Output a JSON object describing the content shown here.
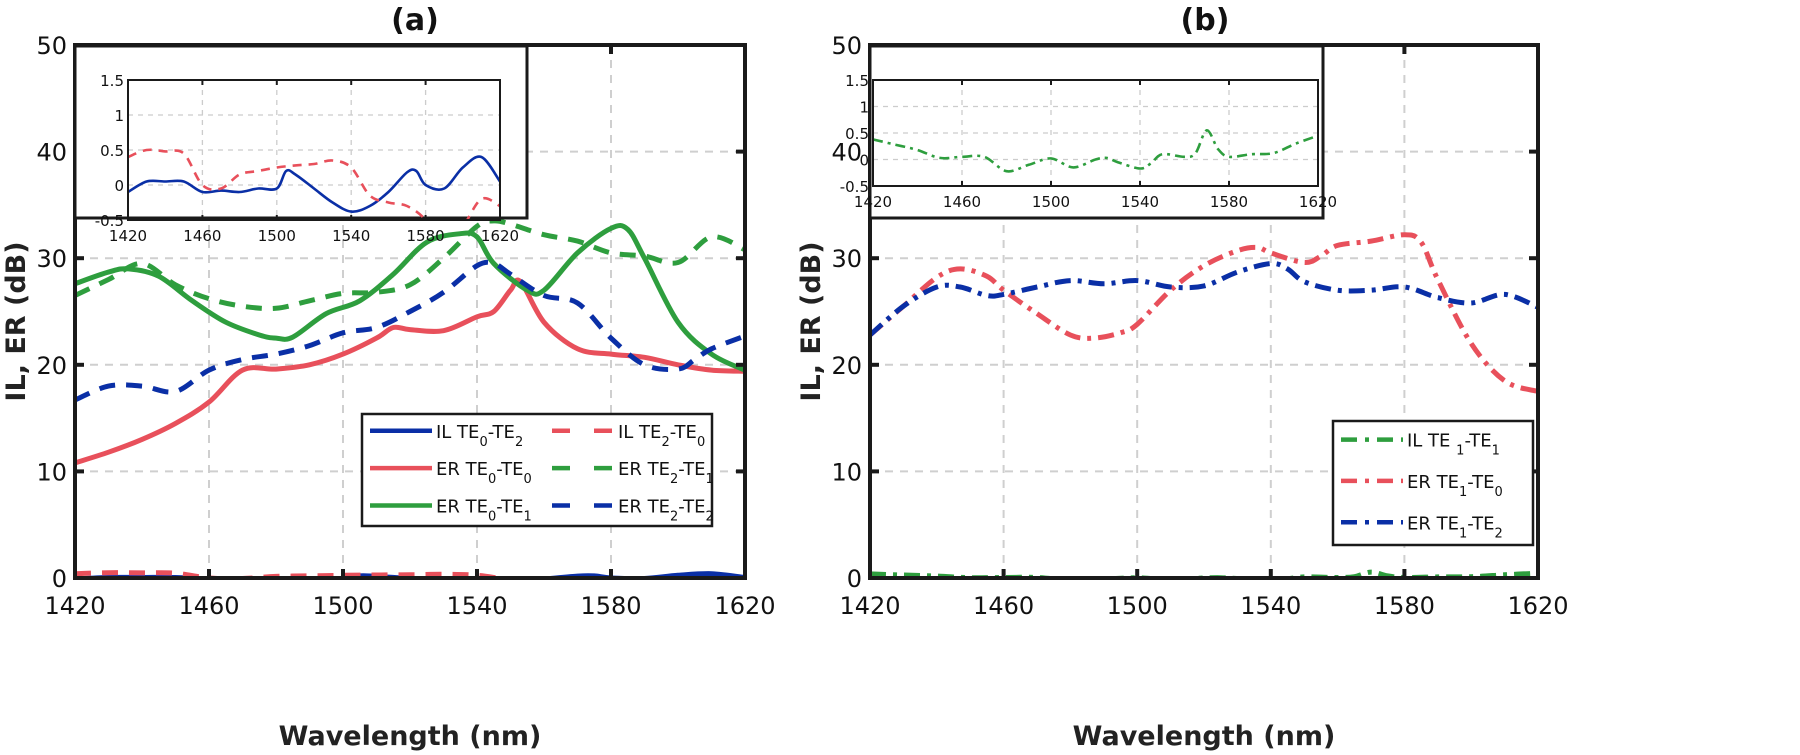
{
  "chart_data": [
    {
      "panel": "a",
      "type": "line",
      "title": "(a)",
      "xlabel": "Wavelength (nm)",
      "ylabel": "IL, ER (dB)",
      "xlim": [
        1420,
        1620
      ],
      "ylim": [
        0,
        50
      ],
      "xticks": [
        "1420",
        "1460",
        "1500",
        "1540",
        "1580",
        "1620"
      ],
      "yticks": [
        "0",
        "10",
        "20",
        "30",
        "40",
        "50"
      ],
      "grid": true,
      "legend": {
        "placement": "lower-right",
        "columns": 2
      },
      "series": [
        {
          "name": "IL TE0-TE2",
          "label_main": "IL TE",
          "sub1": "0",
          "mid": "-TE",
          "sub2": "2",
          "color": "#0a2fa6",
          "style": "solid",
          "x": [
            1420,
            1430,
            1440,
            1450,
            1460,
            1470,
            1480,
            1490,
            1500,
            1505,
            1510,
            1520,
            1530,
            1540,
            1550,
            1560,
            1570,
            1575,
            1580,
            1590,
            1600,
            1610,
            1620
          ],
          "y": [
            -0.1,
            0.05,
            0.05,
            0.05,
            -0.1,
            -0.08,
            -0.1,
            -0.05,
            -0.05,
            0.2,
            0.15,
            -0.05,
            -0.25,
            -0.38,
            -0.3,
            -0.1,
            0.18,
            0.2,
            0.0,
            -0.05,
            0.25,
            0.4,
            0.05
          ]
        },
        {
          "name": "IL TE2-TE0",
          "label_main": "IL TE",
          "sub1": "2",
          "mid": "-TE",
          "sub2": "0",
          "color": "#e8505b",
          "style": "dash",
          "x": [
            1420,
            1430,
            1440,
            1450,
            1460,
            1470,
            1480,
            1490,
            1500,
            1510,
            1520,
            1530,
            1540,
            1550,
            1560,
            1570,
            1580,
            1590,
            1600,
            1610,
            1620
          ],
          "y": [
            0.4,
            0.5,
            0.48,
            0.45,
            0.0,
            -0.05,
            0.15,
            0.2,
            0.25,
            0.28,
            0.3,
            0.35,
            0.25,
            -0.15,
            -0.25,
            -0.3,
            -0.5,
            -0.9,
            -0.6,
            -0.2,
            -0.3
          ]
        },
        {
          "name": "ER TE0-TE0",
          "label_main": "ER TE",
          "sub1": "0",
          "mid": "-TE",
          "sub2": "0",
          "color": "#e8505b",
          "style": "solid",
          "x": [
            1420,
            1430,
            1440,
            1450,
            1460,
            1470,
            1480,
            1490,
            1500,
            1510,
            1515,
            1520,
            1530,
            1540,
            1545,
            1550,
            1553,
            1560,
            1570,
            1580,
            1590,
            1600,
            1610,
            1620
          ],
          "y": [
            10.8,
            11.8,
            13,
            14.5,
            16.5,
            19.5,
            19.6,
            20,
            21,
            22.5,
            23.5,
            23.3,
            23.2,
            24.5,
            25,
            27,
            27.8,
            24,
            21.5,
            21,
            20.7,
            20,
            19.5,
            19.4
          ]
        },
        {
          "name": "ER TE2-TE1",
          "label_main": "ER TE",
          "sub1": "2",
          "mid": "-TE",
          "sub2": "1",
          "color": "#2e9e3e",
          "style": "dash",
          "x": [
            1420,
            1430,
            1440,
            1450,
            1460,
            1470,
            1480,
            1490,
            1500,
            1510,
            1520,
            1530,
            1540,
            1545,
            1550,
            1560,
            1570,
            1580,
            1590,
            1600,
            1610,
            1620
          ],
          "y": [
            26.5,
            28,
            29.5,
            27.5,
            26.2,
            25.5,
            25.3,
            26,
            26.7,
            26.8,
            27.5,
            30,
            33,
            33.5,
            33.2,
            32.2,
            31.6,
            30.5,
            30.2,
            29.6,
            32,
            30.8
          ]
        },
        {
          "name": "ER TE0-TE1",
          "label_main": "ER TE",
          "sub1": "0",
          "mid": "-TE",
          "sub2": "1",
          "color": "#2e9e3e",
          "style": "solid",
          "x": [
            1420,
            1430,
            1436,
            1445,
            1455,
            1465,
            1475,
            1480,
            1485,
            1495,
            1505,
            1515,
            1525,
            1535,
            1540,
            1545,
            1555,
            1560,
            1570,
            1580,
            1585,
            1590,
            1600,
            1610,
            1620
          ],
          "y": [
            27.6,
            28.7,
            29,
            28.3,
            26.0,
            24,
            22.8,
            22.5,
            22.6,
            24.8,
            26,
            28.5,
            31.5,
            32.3,
            32.0,
            29.5,
            27.0,
            27.0,
            30.5,
            32.8,
            32.7,
            30,
            24,
            21,
            19.5
          ]
        },
        {
          "name": "ER TE2-TE2",
          "label_main": "ER TE",
          "sub1": "2",
          "mid": "-TE",
          "sub2": "2",
          "color": "#0a2fa6",
          "style": "dash",
          "x": [
            1420,
            1430,
            1440,
            1450,
            1460,
            1470,
            1480,
            1490,
            1500,
            1510,
            1520,
            1530,
            1540,
            1545,
            1550,
            1560,
            1570,
            1580,
            1590,
            1600,
            1605,
            1610,
            1620
          ],
          "y": [
            16.7,
            18,
            18,
            17.5,
            19.5,
            20.5,
            21.0,
            21.8,
            23,
            23.5,
            25,
            26.8,
            29.3,
            29.5,
            28.5,
            26.5,
            25.8,
            22.5,
            20,
            19.6,
            20.5,
            21.5,
            22.7
          ]
        }
      ],
      "inset": {
        "xlim": [
          1420,
          1620
        ],
        "ylim": [
          -0.5,
          1.5
        ],
        "xticks": [
          "1420",
          "1460",
          "1500",
          "1540",
          "1580",
          "1620"
        ],
        "yticks": [
          "-0.5",
          "0",
          "0.5",
          "1",
          "1.5"
        ],
        "series_ref": [
          "IL TE0-TE2",
          "IL TE2-TE0"
        ]
      }
    },
    {
      "panel": "b",
      "type": "line",
      "title": "(b)",
      "xlabel": "Wavelength (nm)",
      "ylabel": "IL, ER (dB)",
      "xlim": [
        1420,
        1620
      ],
      "ylim": [
        0,
        50
      ],
      "xticks": [
        "1420",
        "1460",
        "1500",
        "1540",
        "1580",
        "1620"
      ],
      "yticks": [
        "0",
        "10",
        "20",
        "30",
        "40",
        "50"
      ],
      "grid": true,
      "legend": {
        "placement": "lower-right",
        "columns": 1
      },
      "series": [
        {
          "name": "IL TE1-TE1",
          "label_main": "IL TE ",
          "sub1": "1",
          "mid": "-TE",
          "sub2": "1",
          "color": "#2e9e3e",
          "style": "dashdot",
          "x": [
            1420,
            1430,
            1440,
            1450,
            1460,
            1470,
            1480,
            1490,
            1500,
            1510,
            1520,
            1525,
            1530,
            1540,
            1545,
            1550,
            1560,
            1565,
            1570,
            1575,
            1580,
            1590,
            1600,
            1610,
            1620
          ],
          "y": [
            0.38,
            0.28,
            0.18,
            0.03,
            0.05,
            0.05,
            -0.22,
            -0.1,
            0.02,
            -0.15,
            0.0,
            0.03,
            -0.05,
            -0.17,
            -0.07,
            0.1,
            0.05,
            0.12,
            0.55,
            0.2,
            0.05,
            0.1,
            0.12,
            0.3,
            0.45
          ]
        },
        {
          "name": "ER TE1-TE0",
          "label_main": "ER TE",
          "sub1": "1",
          "mid": "-TE",
          "sub2": "0",
          "color": "#e8505b",
          "style": "dashdot",
          "x": [
            1420,
            1430,
            1440,
            1447,
            1455,
            1460,
            1470,
            1480,
            1487,
            1495,
            1500,
            1510,
            1520,
            1530,
            1536,
            1540,
            1550,
            1555,
            1560,
            1570,
            1580,
            1585,
            1590,
            1600,
            1610,
            1620
          ],
          "y": [
            22.8,
            25.5,
            28.2,
            29.0,
            28.3,
            27.0,
            24.8,
            22.8,
            22.5,
            23.0,
            23.8,
            27,
            29.3,
            30.7,
            31.0,
            30.5,
            29.6,
            30.2,
            31.2,
            31.6,
            32.2,
            31.5,
            28,
            22,
            18.5,
            17.5
          ]
        },
        {
          "name": "ER TE1-TE2",
          "label_main": "ER TE",
          "sub1": "1",
          "mid": "-TE",
          "sub2": "2",
          "color": "#0a2fa6",
          "style": "dashdot",
          "x": [
            1420,
            1430,
            1440,
            1447,
            1455,
            1460,
            1470,
            1480,
            1490,
            1500,
            1510,
            1520,
            1530,
            1540,
            1545,
            1550,
            1560,
            1570,
            1580,
            1590,
            1600,
            1610,
            1620
          ],
          "y": [
            22.8,
            25.5,
            27.3,
            27.3,
            26.5,
            26.6,
            27.3,
            27.9,
            27.6,
            27.9,
            27.3,
            27.4,
            28.7,
            29.5,
            29.0,
            27.8,
            27.0,
            27.0,
            27.3,
            26.3,
            25.8,
            26.6,
            25.4
          ]
        }
      ],
      "inset": {
        "xlim": [
          1420,
          1620
        ],
        "ylim": [
          -0.5,
          1.5
        ],
        "xticks": [
          "1420",
          "1460",
          "1500",
          "1540",
          "1580",
          "1620"
        ],
        "yticks": [
          "-0.5",
          "0",
          "0.5",
          "1",
          "1.5"
        ],
        "series_ref": [
          "IL TE1-TE1"
        ]
      }
    }
  ]
}
